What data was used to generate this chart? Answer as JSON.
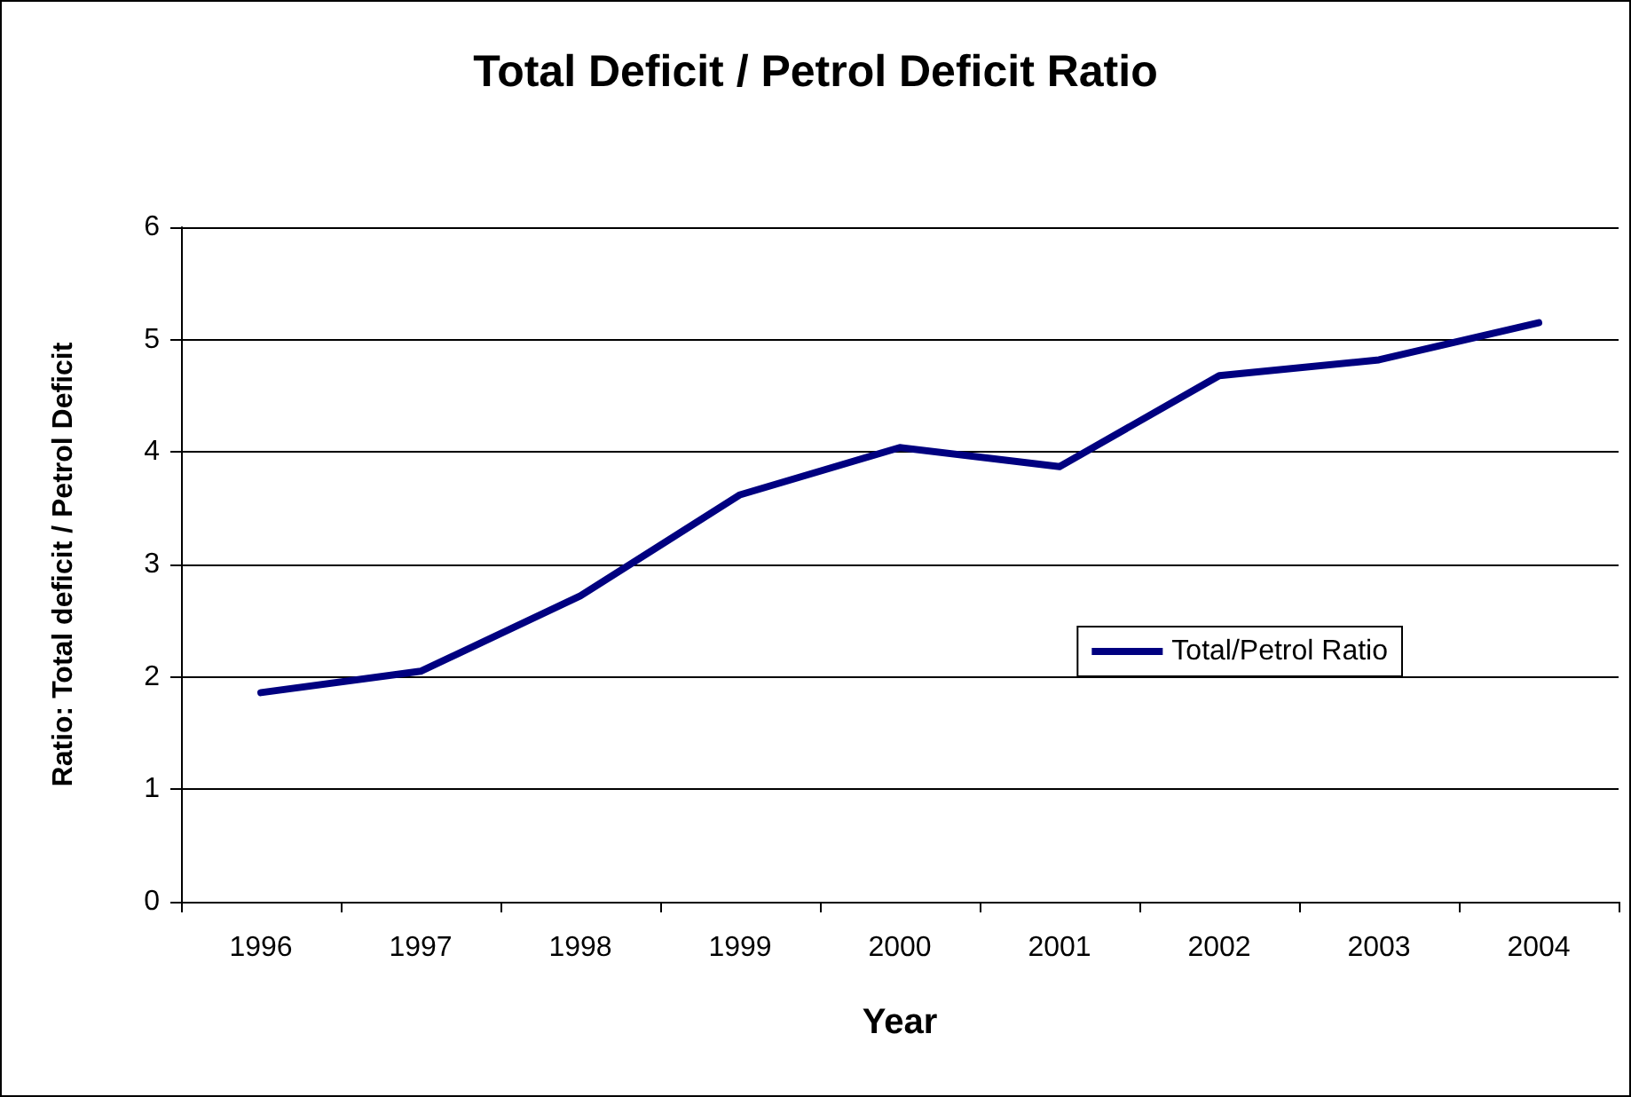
{
  "chart_data": {
    "type": "line",
    "title": "Total Deficit / Petrol Deficit Ratio",
    "xlabel": "Year",
    "ylabel": "Ratio: Total deficit / Petrol Deficit",
    "categories": [
      "1996",
      "1997",
      "1998",
      "1999",
      "2000",
      "2001",
      "2002",
      "2003",
      "2004"
    ],
    "series": [
      {
        "name": "Total/Petrol Ratio",
        "color": "#000080",
        "values": [
          1.86,
          2.05,
          2.72,
          3.62,
          4.04,
          3.87,
          4.68,
          4.82,
          5.15
        ]
      }
    ],
    "ylim": [
      0,
      6
    ],
    "yticks": [
      0,
      1,
      2,
      3,
      4,
      5,
      6
    ],
    "grid": "y",
    "legend": "right",
    "marker": "none",
    "line_style": "solid"
  }
}
